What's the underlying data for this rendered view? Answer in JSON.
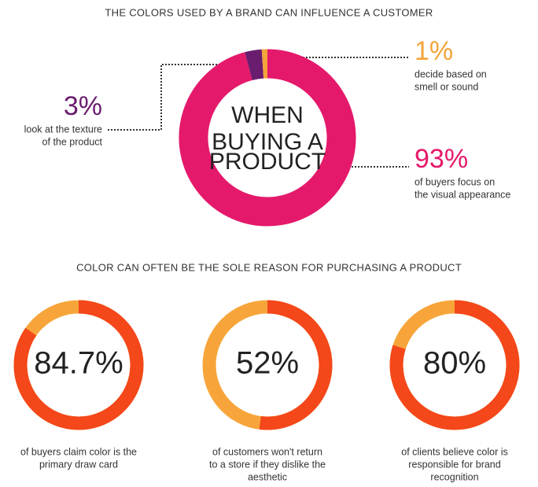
{
  "chart_data": [
    {
      "type": "pie",
      "title": "THE COLORS USED BY A BRAND CAN INFLUENCE A CUSTOMER",
      "center_text": [
        "WHEN",
        "BUYING A",
        "PRODUCT"
      ],
      "categories": [
        [
          "of buyers focus on",
          "the visual appearance"
        ],
        [
          "look at the texture",
          "of the product"
        ],
        [
          "decide based on",
          "smell or sound"
        ]
      ],
      "values": [
        93,
        3,
        1
      ],
      "value_labels": [
        "93%",
        "3%",
        "1%"
      ],
      "colors": [
        "#e5196b",
        "#6a1c6e",
        "#f3a43a"
      ]
    },
    {
      "type": "gauge",
      "title": "COLOR CAN OFTEN BE THE SOLE REASON FOR PURCHASING A PRODUCT",
      "categories": [
        [
          "of buyers claim color is the",
          "primary draw card"
        ],
        [
          "of customers won't return",
          "to a store if they dislike the",
          "aesthetic"
        ],
        [
          "of clients believe color is",
          "responsible for brand",
          "recognition"
        ]
      ],
      "values": [
        84.7,
        52,
        80
      ],
      "value_labels": [
        "84.7%",
        "52%",
        "80%"
      ],
      "color": "#f4471a",
      "track_color": "#f7a53a"
    }
  ]
}
